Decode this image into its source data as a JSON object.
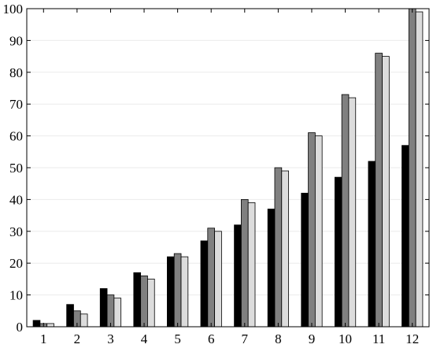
{
  "chart_data": {
    "type": "bar",
    "categories": [
      "1",
      "2",
      "3",
      "4",
      "5",
      "6",
      "7",
      "8",
      "9",
      "10",
      "11",
      "12"
    ],
    "series": [
      {
        "color": "#000000",
        "values": [
          2,
          7,
          12,
          17,
          22,
          27,
          32,
          37,
          42,
          47,
          52,
          57
        ]
      },
      {
        "color": "#808080",
        "values": [
          1,
          5,
          10,
          16,
          23,
          31,
          40,
          50,
          61,
          73,
          86,
          100
        ]
      },
      {
        "color": "#dcdcdc",
        "values": [
          1,
          4,
          9,
          15,
          22,
          30,
          39,
          49,
          60,
          72,
          85,
          99
        ]
      }
    ],
    "yticks": [
      "0",
      "10",
      "20",
      "30",
      "40",
      "50",
      "60",
      "70",
      "80",
      "90",
      "100"
    ],
    "ylim": [
      0,
      100
    ],
    "grid": true,
    "legend": "none"
  }
}
